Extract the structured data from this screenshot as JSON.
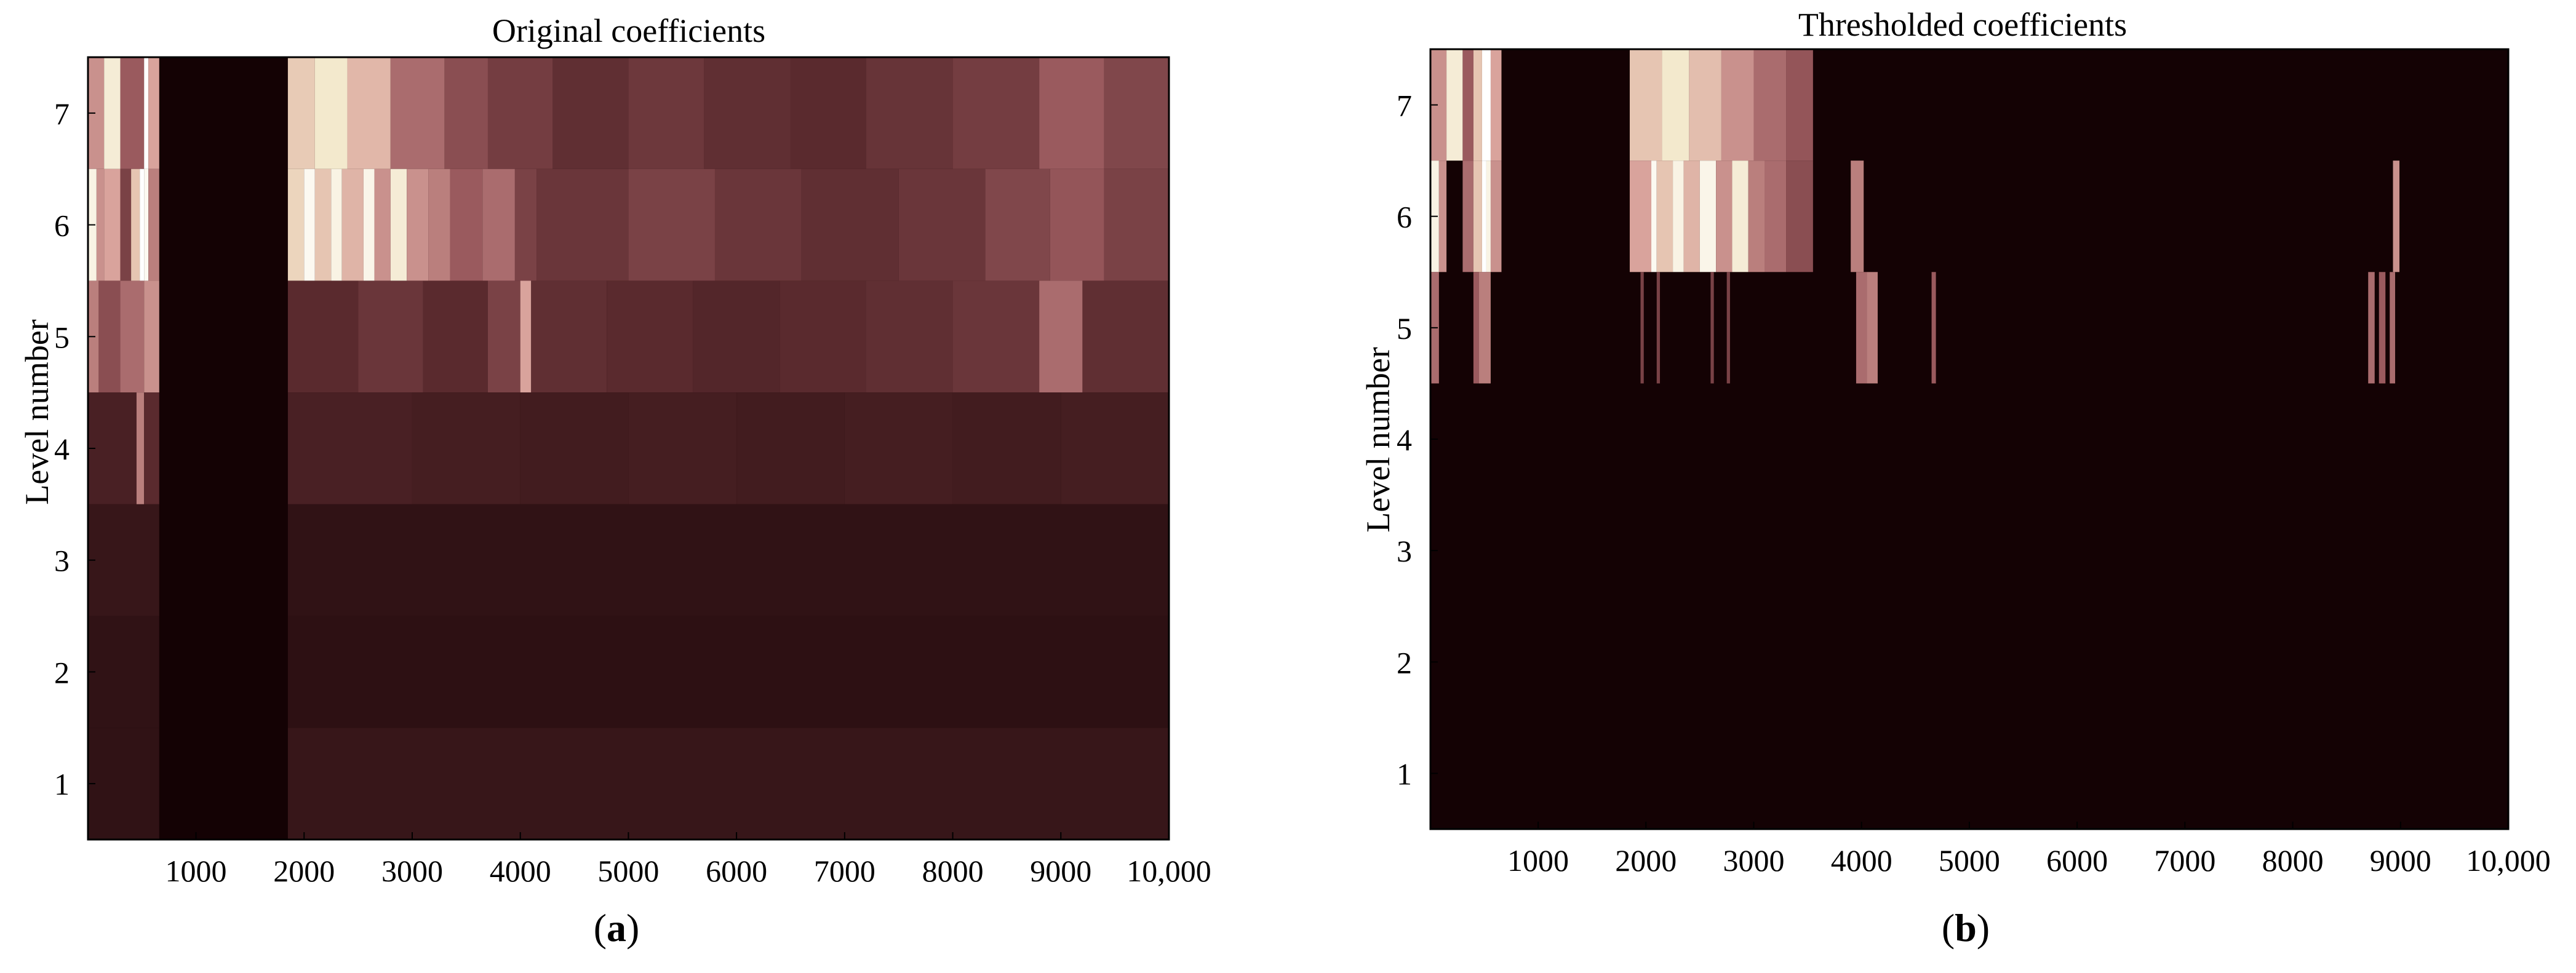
{
  "figure": {
    "panels": [
      {
        "label_prefix": "(",
        "label": "a",
        "label_suffix": ")"
      },
      {
        "label_prefix": "(",
        "label": "b",
        "label_suffix": ")"
      }
    ]
  },
  "chart_data": [
    {
      "type": "heatmap",
      "title": "Original coefficients",
      "xlabel": "",
      "ylabel": "Level number",
      "xlim": [
        1,
        10000
      ],
      "ylim": [
        0.5,
        7.5
      ],
      "xticks": [
        1000,
        2000,
        3000,
        4000,
        5000,
        6000,
        7000,
        8000,
        9000,
        10000
      ],
      "xtick_labels": [
        "1000",
        "2000",
        "3000",
        "4000",
        "5000",
        "6000",
        "7000",
        "8000",
        "9000",
        "10,000"
      ],
      "yticks": [
        1,
        2,
        3,
        4,
        5,
        6,
        7
      ],
      "ytick_labels": [
        "1",
        "2",
        "3",
        "4",
        "5",
        "6",
        "7"
      ],
      "colormap": [
        "#140204",
        "#5a2a2e",
        "#9a5a5e",
        "#d9a39c",
        "#f2e6c8",
        "#ffffff"
      ],
      "background": "#140204",
      "levels": [
        {
          "level": 7,
          "segments": [
            [
              1,
              150,
              0.55
            ],
            [
              150,
              300,
              0.85
            ],
            [
              300,
              520,
              0.4
            ],
            [
              520,
              560,
              1.0
            ],
            [
              560,
              660,
              0.6
            ],
            [
              1850,
              2100,
              0.72
            ],
            [
              2100,
              2400,
              0.82
            ],
            [
              2400,
              2800,
              0.66
            ],
            [
              2800,
              3300,
              0.45
            ],
            [
              3300,
              3700,
              0.35
            ],
            [
              3700,
              4300,
              0.28
            ],
            [
              4300,
              5000,
              0.22
            ],
            [
              5000,
              5700,
              0.26
            ],
            [
              5700,
              6500,
              0.22
            ],
            [
              6500,
              7200,
              0.2
            ],
            [
              7200,
              8000,
              0.24
            ],
            [
              8000,
              8800,
              0.28
            ],
            [
              8800,
              9400,
              0.4
            ],
            [
              9400,
              10000,
              0.32
            ]
          ]
        },
        {
          "level": 6,
          "segments": [
            [
              1,
              80,
              0.9
            ],
            [
              80,
              150,
              0.55
            ],
            [
              150,
              300,
              0.6
            ],
            [
              300,
              400,
              0.3
            ],
            [
              400,
              480,
              0.7
            ],
            [
              480,
              520,
              1.0
            ],
            [
              520,
              560,
              0.95
            ],
            [
              560,
              660,
              0.5
            ],
            [
              1850,
              2000,
              0.75
            ],
            [
              2000,
              2100,
              0.95
            ],
            [
              2100,
              2250,
              0.7
            ],
            [
              2250,
              2350,
              0.9
            ],
            [
              2350,
              2550,
              0.65
            ],
            [
              2550,
              2650,
              0.92
            ],
            [
              2650,
              2800,
              0.55
            ],
            [
              2800,
              2950,
              0.85
            ],
            [
              2950,
              3150,
              0.55
            ],
            [
              3150,
              3350,
              0.5
            ],
            [
              3350,
              3650,
              0.4
            ],
            [
              3650,
              3950,
              0.45
            ],
            [
              3950,
              4150,
              0.3
            ],
            [
              4150,
              5000,
              0.25
            ],
            [
              5000,
              5800,
              0.3
            ],
            [
              5800,
              6600,
              0.25
            ],
            [
              6600,
              7500,
              0.22
            ],
            [
              7500,
              8300,
              0.25
            ],
            [
              8300,
              8900,
              0.32
            ],
            [
              8900,
              9400,
              0.38
            ],
            [
              9400,
              10000,
              0.3
            ]
          ]
        },
        {
          "level": 5,
          "segments": [
            [
              1,
              100,
              0.5
            ],
            [
              100,
              300,
              0.35
            ],
            [
              300,
              520,
              0.45
            ],
            [
              520,
              660,
              0.55
            ],
            [
              1850,
              2500,
              0.2
            ],
            [
              2500,
              3100,
              0.25
            ],
            [
              3100,
              3700,
              0.2
            ],
            [
              3700,
              4000,
              0.3
            ],
            [
              4000,
              4100,
              0.6
            ],
            [
              4100,
              4800,
              0.22
            ],
            [
              4800,
              5600,
              0.2
            ],
            [
              5600,
              6400,
              0.18
            ],
            [
              6400,
              7200,
              0.2
            ],
            [
              7200,
              8000,
              0.22
            ],
            [
              8000,
              8800,
              0.25
            ],
            [
              8800,
              9200,
              0.45
            ],
            [
              9200,
              10000,
              0.22
            ]
          ]
        },
        {
          "level": 4,
          "segments": [
            [
              1,
              450,
              0.15
            ],
            [
              450,
              520,
              0.5
            ],
            [
              520,
              660,
              0.2
            ],
            [
              1850,
              3000,
              0.15
            ],
            [
              3000,
              4000,
              0.14
            ],
            [
              4000,
              5000,
              0.13
            ],
            [
              5000,
              6000,
              0.14
            ],
            [
              6000,
              7000,
              0.13
            ],
            [
              7000,
              8000,
              0.14
            ],
            [
              8000,
              9000,
              0.13
            ],
            [
              9000,
              10000,
              0.14
            ]
          ]
        },
        {
          "level": 3,
          "segments": [
            [
              1,
              660,
              0.1
            ],
            [
              1850,
              10000,
              0.08
            ]
          ]
        },
        {
          "level": 2,
          "segments": [
            [
              1,
              660,
              0.08
            ],
            [
              1850,
              10000,
              0.07
            ]
          ]
        },
        {
          "level": 1,
          "segments": [
            [
              1,
              660,
              0.08
            ],
            [
              1850,
              10000,
              0.1
            ]
          ]
        }
      ]
    },
    {
      "type": "heatmap",
      "title": "Thresholded coefficients",
      "xlabel": "",
      "ylabel": "Level number",
      "xlim": [
        1,
        10000
      ],
      "ylim": [
        0.5,
        7.5
      ],
      "xticks": [
        1000,
        2000,
        3000,
        4000,
        5000,
        6000,
        7000,
        8000,
        9000,
        10000
      ],
      "xtick_labels": [
        "1000",
        "2000",
        "3000",
        "4000",
        "5000",
        "6000",
        "7000",
        "8000",
        "9000",
        "10,000"
      ],
      "yticks": [
        1,
        2,
        3,
        4,
        5,
        6,
        7
      ],
      "ytick_labels": [
        "1",
        "2",
        "3",
        "4",
        "5",
        "6",
        "7"
      ],
      "colormap": [
        "#140204",
        "#5a2a2e",
        "#9a5a5e",
        "#d9a39c",
        "#f2e6c8",
        "#ffffff"
      ],
      "background": "#140204",
      "levels": [
        {
          "level": 7,
          "segments": [
            [
              1,
              150,
              0.55
            ],
            [
              150,
              300,
              0.85
            ],
            [
              300,
              400,
              0.4
            ],
            [
              400,
              480,
              0.7
            ],
            [
              480,
              560,
              1.0
            ],
            [
              560,
              660,
              0.6
            ],
            [
              1850,
              2150,
              0.7
            ],
            [
              2150,
              2400,
              0.82
            ],
            [
              2400,
              2700,
              0.68
            ],
            [
              2700,
              3000,
              0.55
            ],
            [
              3000,
              3300,
              0.45
            ],
            [
              3300,
              3550,
              0.38
            ]
          ]
        },
        {
          "level": 6,
          "segments": [
            [
              1,
              80,
              0.9
            ],
            [
              80,
              150,
              0.55
            ],
            [
              300,
              400,
              0.45
            ],
            [
              400,
              480,
              0.7
            ],
            [
              480,
              520,
              1.0
            ],
            [
              520,
              560,
              0.9
            ],
            [
              560,
              660,
              0.55
            ],
            [
              1850,
              2050,
              0.6
            ],
            [
              2050,
              2100,
              0.95
            ],
            [
              2100,
              2250,
              0.7
            ],
            [
              2250,
              2350,
              0.9
            ],
            [
              2350,
              2500,
              0.65
            ],
            [
              2500,
              2650,
              0.92
            ],
            [
              2650,
              2800,
              0.55
            ],
            [
              2800,
              2950,
              0.85
            ],
            [
              2950,
              3100,
              0.5
            ],
            [
              3100,
              3300,
              0.45
            ],
            [
              3300,
              3550,
              0.35
            ],
            [
              3900,
              4020,
              0.5
            ],
            [
              8930,
              8990,
              0.55
            ]
          ]
        },
        {
          "level": 5,
          "segments": [
            [
              1,
              80,
              0.45
            ],
            [
              400,
              450,
              0.4
            ],
            [
              450,
              560,
              0.5
            ],
            [
              1950,
              1980,
              0.3
            ],
            [
              2100,
              2130,
              0.3
            ],
            [
              2600,
              2630,
              0.3
            ],
            [
              2750,
              2780,
              0.3
            ],
            [
              3950,
              4050,
              0.45
            ],
            [
              4050,
              4150,
              0.5
            ],
            [
              4650,
              4690,
              0.4
            ],
            [
              8700,
              8760,
              0.45
            ],
            [
              8800,
              8860,
              0.4
            ],
            [
              8900,
              8950,
              0.45
            ]
          ]
        },
        {
          "level": 4,
          "segments": []
        },
        {
          "level": 3,
          "segments": []
        },
        {
          "level": 2,
          "segments": []
        },
        {
          "level": 1,
          "segments": []
        }
      ]
    }
  ]
}
